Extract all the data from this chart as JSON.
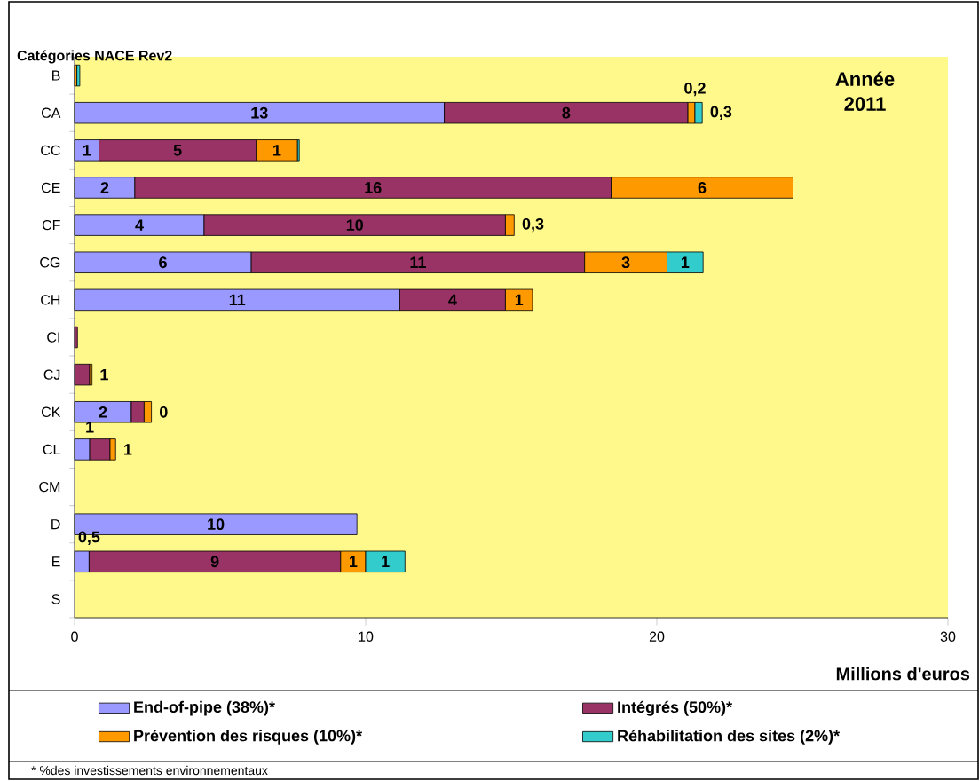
{
  "chart_data": {
    "type": "bar",
    "orientation": "horizontal",
    "stacked": true,
    "title": "Année 2011",
    "ylabel": "Catégories NACE Rev2",
    "xlabel": "Millions d'euros",
    "annotations": [
      "* %des investissements environnementaux"
    ],
    "categories": [
      "B",
      "CA",
      "CC",
      "CE",
      "CF",
      "CG",
      "CH",
      "CI",
      "CJ",
      "CK",
      "CL",
      "CM",
      "D",
      "E",
      "S"
    ],
    "series": [
      {
        "name": "End-of-pipe (38%)*",
        "color": "#9999ff",
        "values": [
          null,
          12.7,
          0.84,
          2.07,
          4.45,
          6.07,
          11.17,
          null,
          null,
          1.95,
          0.52,
          null,
          9.7,
          0.5,
          null
        ],
        "value_labels": [
          null,
          "13",
          "1",
          "2",
          "4",
          "6",
          "11",
          null,
          null,
          "2",
          "1",
          null,
          "10",
          "0,5",
          null
        ]
      },
      {
        "name": "Intégrés (50%)*",
        "color": "#993366",
        "values": [
          null,
          8.37,
          5.4,
          16.36,
          10.35,
          11.45,
          3.63,
          0.1,
          0.52,
          0.44,
          0.7,
          null,
          null,
          8.64,
          null
        ],
        "value_labels": [
          null,
          "8",
          "5",
          "16",
          "10",
          "11",
          "4",
          null,
          "1",
          "0",
          "1",
          null,
          null,
          "9",
          null
        ]
      },
      {
        "name": "Prévention des risques (10%)*",
        "color": "#ff9900",
        "values": [
          0.08,
          0.24,
          1.42,
          6.25,
          0.3,
          2.83,
          0.93,
          null,
          0.08,
          0.25,
          0.19,
          null,
          null,
          0.86,
          null
        ],
        "value_labels": [
          null,
          "0,2",
          "1",
          "6",
          "0,3",
          "3",
          "1",
          null,
          null,
          null,
          null,
          null,
          null,
          "1",
          null
        ]
      },
      {
        "name": "Réhabilitation des sites (2%)*",
        "color": "#33cccc",
        "values": [
          0.1,
          0.25,
          0.06,
          null,
          null,
          1.24,
          null,
          null,
          null,
          null,
          null,
          null,
          null,
          1.35,
          null
        ],
        "value_labels": [
          null,
          "0,3",
          null,
          null,
          null,
          "1",
          null,
          null,
          null,
          null,
          null,
          null,
          null,
          "1",
          null
        ]
      }
    ],
    "xlim": [
      0,
      30
    ],
    "xticks": [
      0,
      10,
      20,
      30
    ],
    "legend": "bottom"
  }
}
